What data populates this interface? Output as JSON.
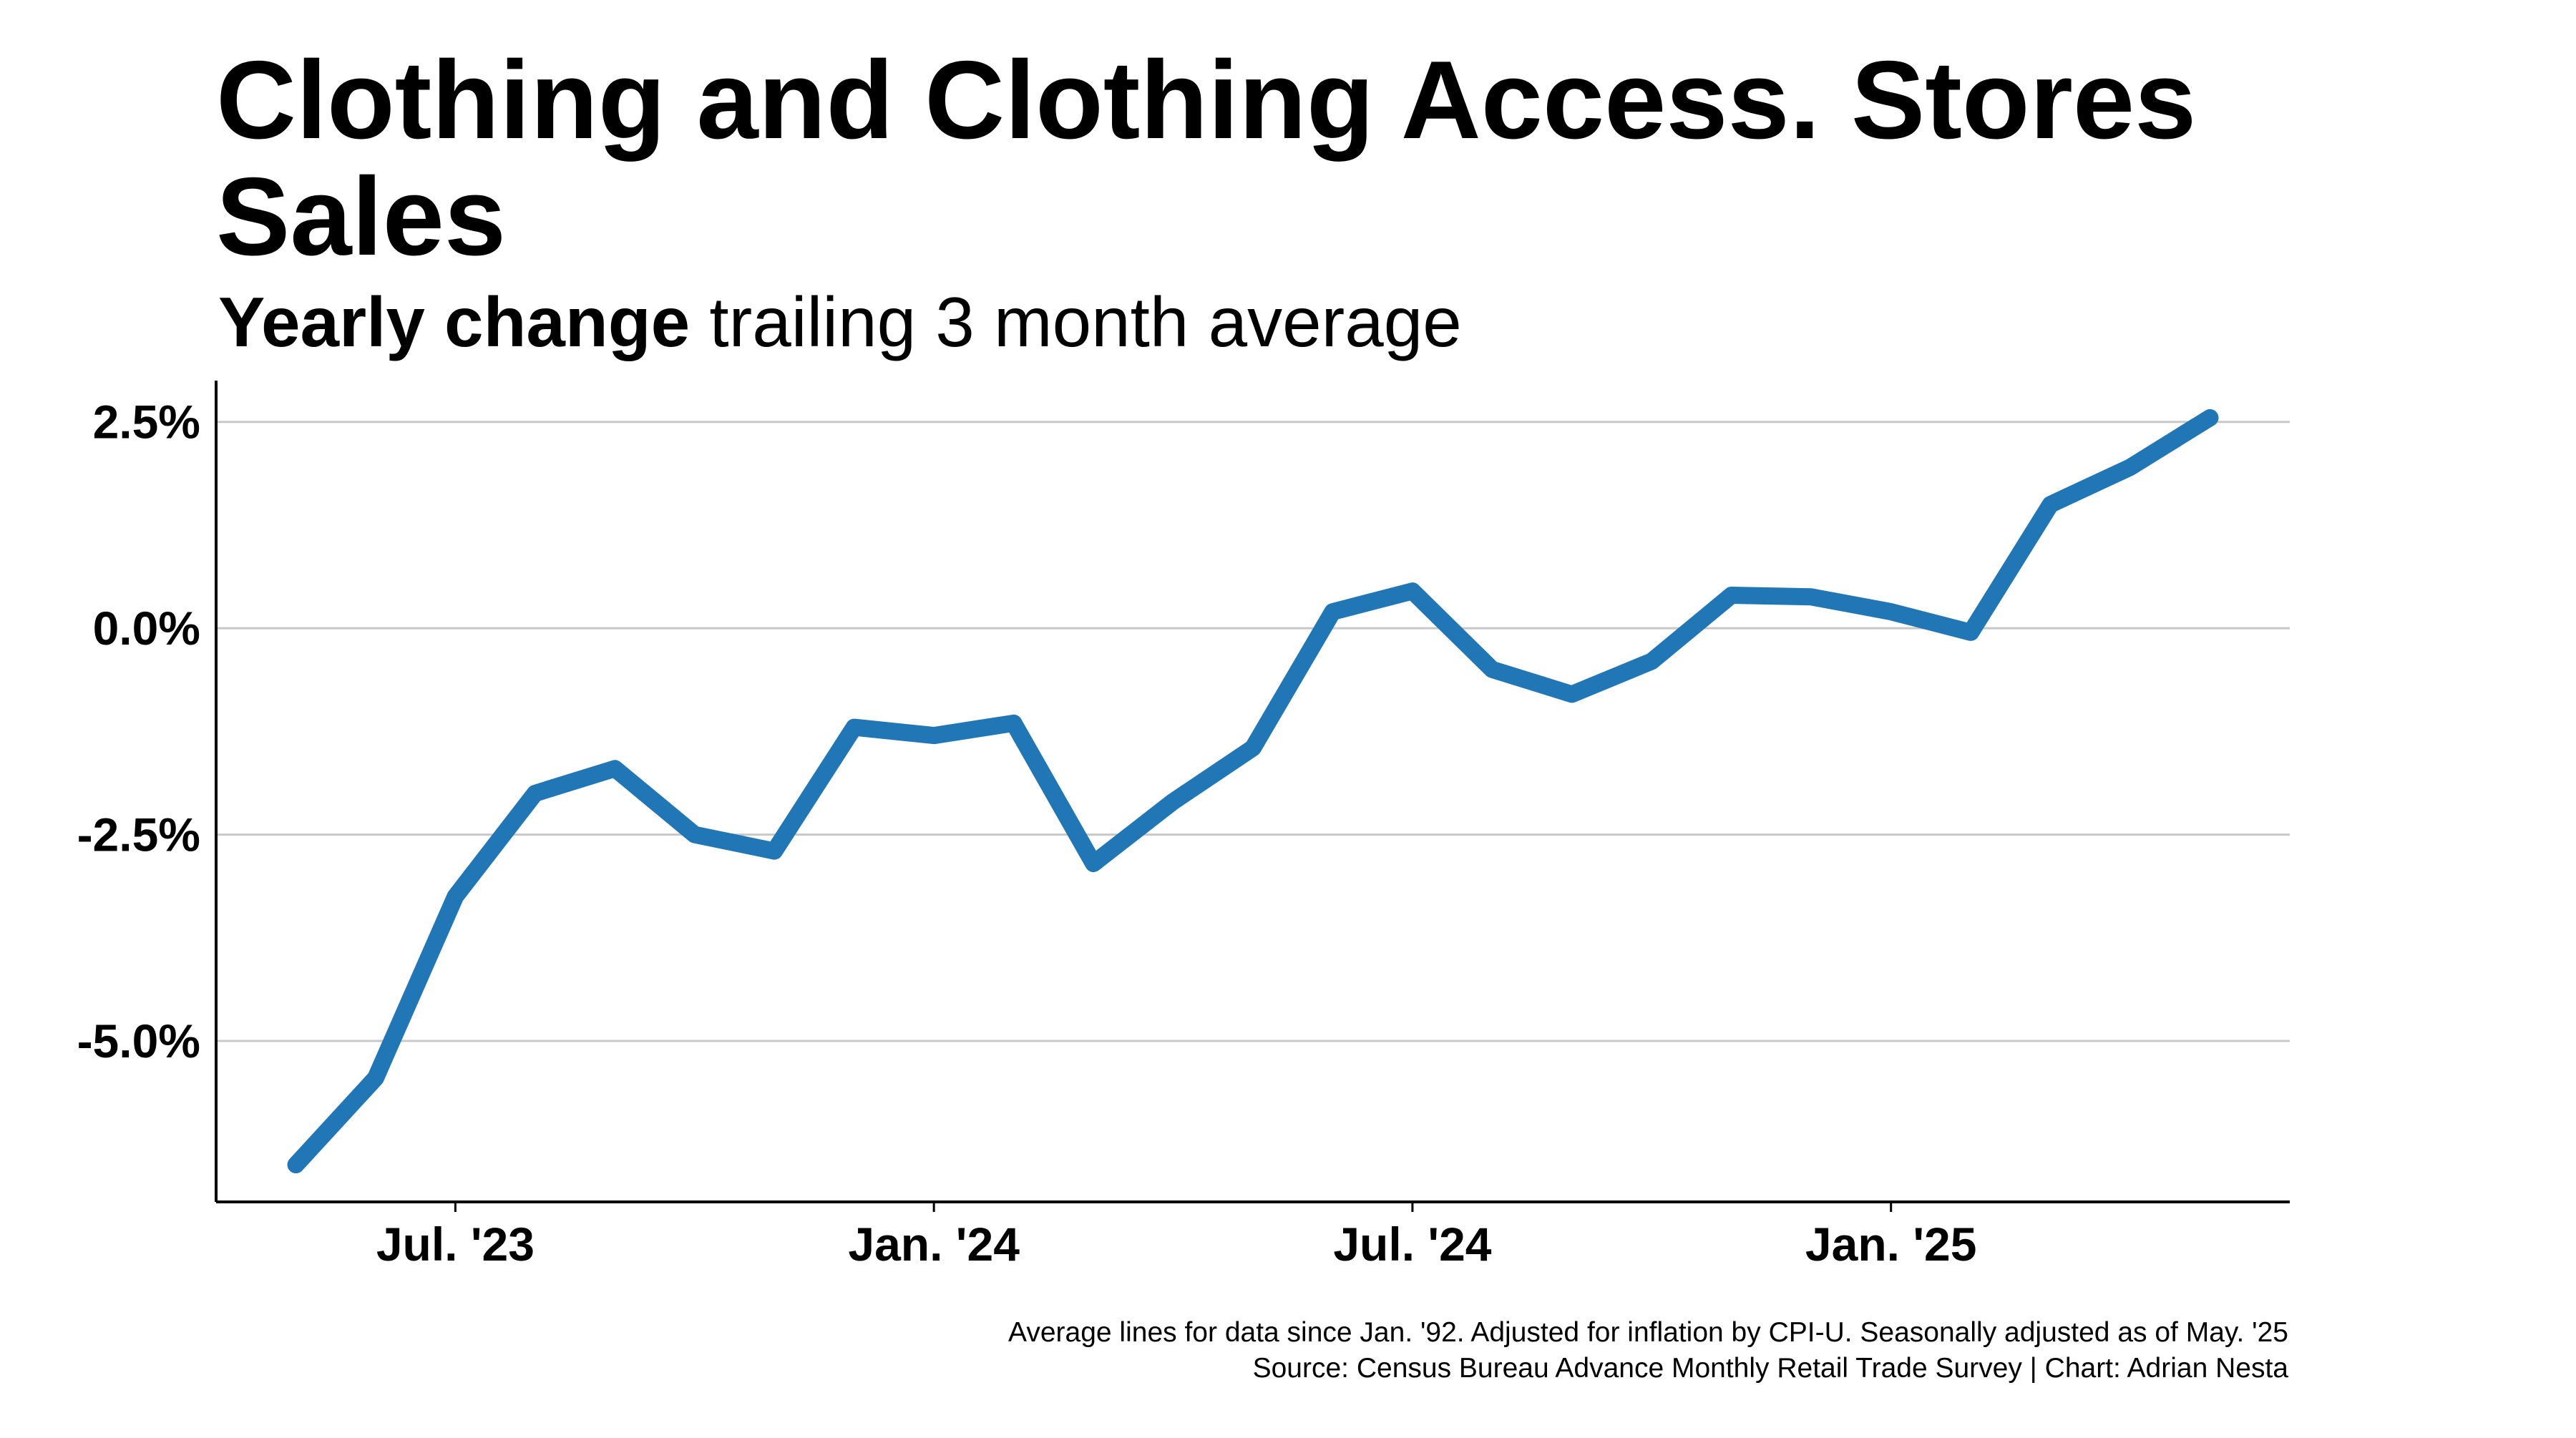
{
  "chart_data": {
    "type": "line",
    "title": "Clothing and Clothing Access. Stores Sales",
    "subtitle_highlight": "Yearly change",
    "subtitle_rest": " trailing 3 month average",
    "xlabel": "",
    "ylabel": "",
    "x_tick_labels": [
      "Jul. '23",
      "Jan. '24",
      "Jul. '24",
      "Jan. '25"
    ],
    "x_tick_months": [
      "2023-07",
      "2024-01",
      "2024-07",
      "2025-01"
    ],
    "x_range": [
      "2023-04",
      "2025-06"
    ],
    "y_tick_values": [
      2.5,
      0.0,
      -2.5,
      -5.0
    ],
    "y_tick_labels": [
      "2.5%",
      "0.0%",
      "-2.5%",
      "-5.0%"
    ],
    "ylim": [
      -6.95,
      3.0
    ],
    "grid": "horizontal",
    "legend": "none",
    "series": [
      {
        "color": "#2176b6",
        "x": [
          "2023-05",
          "2023-06",
          "2023-07",
          "2023-08",
          "2023-09",
          "2023-10",
          "2023-11",
          "2023-12",
          "2024-01",
          "2024-02",
          "2024-03",
          "2024-04",
          "2024-05",
          "2024-06",
          "2024-07",
          "2024-08",
          "2024-09",
          "2024-10",
          "2024-11",
          "2024-12",
          "2025-01",
          "2025-02",
          "2025-03",
          "2025-04",
          "2025-05"
        ],
        "values": [
          -6.5,
          -5.45,
          -3.25,
          -2.0,
          -1.7,
          -2.5,
          -2.7,
          -1.2,
          -1.3,
          -1.15,
          -2.85,
          -2.1,
          -1.45,
          0.2,
          0.45,
          -0.5,
          -0.8,
          -0.4,
          0.4,
          0.38,
          0.2,
          -0.05,
          1.5,
          1.95,
          2.55
        ]
      }
    ],
    "caption_line1": "Average lines for data since Jan. '92. Adjusted for inflation by CPI-U. Seasonally adjusted as of May. '25",
    "caption_line2": "Source: Census Bureau Advance Monthly Retail Trade Survey | Chart: Adrian Nesta"
  },
  "colors": {
    "accent": "#2176b6",
    "grid": "#c8c8c8",
    "axis": "#000000"
  }
}
